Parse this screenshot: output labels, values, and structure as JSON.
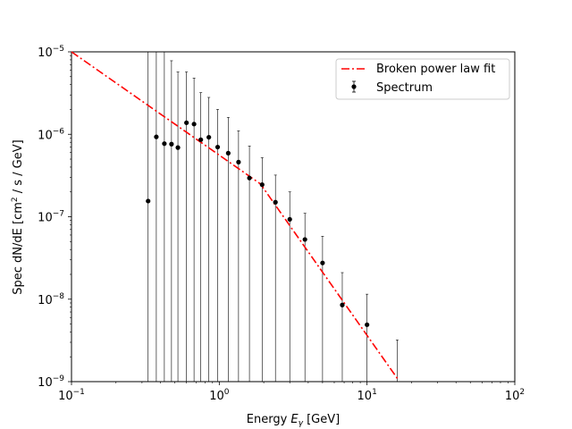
{
  "chart_data": {
    "type": "scatter",
    "xscale": "log",
    "yscale": "log",
    "xlim": [
      0.1,
      100
    ],
    "ylim": [
      1e-09,
      1e-05
    ],
    "xlabel": {
      "prefix": "Energy ",
      "sym": "E",
      "sub": "γ",
      "unit": " [GeV]"
    },
    "ylabel": {
      "prefix": "Spec dN/dE [cm",
      "sup": "2",
      "suffix": " / s / GeV]"
    },
    "x_ticks": [
      {
        "value": 0.1,
        "base": "10",
        "exp": "−1"
      },
      {
        "value": 1,
        "base": "10",
        "exp": "0"
      },
      {
        "value": 10,
        "base": "10",
        "exp": "1"
      },
      {
        "value": 100,
        "base": "10",
        "exp": "2"
      }
    ],
    "y_ticks": [
      {
        "value": 1e-09,
        "base": "10",
        "exp": "−9"
      },
      {
        "value": 1e-08,
        "base": "10",
        "exp": "−8"
      },
      {
        "value": 1e-07,
        "base": "10",
        "exp": "−7"
      },
      {
        "value": 1e-06,
        "base": "10",
        "exp": "−6"
      },
      {
        "value": 1e-05,
        "base": "10",
        "exp": "−5"
      }
    ],
    "legend": {
      "position": "upper right",
      "entries": [
        {
          "label": "Broken power law fit",
          "style": "dashdot-line",
          "color": "#ff0000"
        },
        {
          "label": "Spectrum",
          "style": "errorbar-point",
          "color": "#000000"
        }
      ]
    },
    "series": [
      {
        "name": "Spectrum",
        "kind": "points_with_errorbars",
        "color": "#000000",
        "x": [
          0.33,
          0.375,
          0.425,
          0.475,
          0.525,
          0.6,
          0.675,
          0.75,
          0.85,
          0.975,
          1.15,
          1.35,
          1.6,
          1.95,
          2.4,
          3.0,
          3.8,
          5.0,
          6.8,
          10.0
        ],
        "y": [
          1.55e-07,
          9.3e-07,
          7.7e-07,
          7.6e-07,
          6.9e-07,
          1.38e-06,
          1.33e-06,
          8.6e-07,
          9.2e-07,
          7e-07,
          5.9e-07,
          4.6e-07,
          2.95e-07,
          2.45e-07,
          1.5e-07,
          9.3e-08,
          5.3e-08,
          2.75e-08,
          8.5e-09,
          4.9e-09
        ],
        "y_upper": [
          0.0001,
          0.0001,
          0.0001,
          7.8e-06,
          5.7e-06,
          5.7e-06,
          4.8e-06,
          3.2e-06,
          2.8e-06,
          2e-06,
          1.6e-06,
          1.1e-06,
          7.2e-07,
          5.2e-07,
          3.2e-07,
          2e-07,
          1.1e-07,
          5.8e-08,
          2.1e-08,
          1.15e-08
        ],
        "y_lower": [
          1e-12,
          1e-12,
          1e-12,
          1e-12,
          1e-12,
          1e-12,
          1e-12,
          1e-12,
          1e-12,
          1e-12,
          1e-12,
          1e-12,
          1e-12,
          1e-12,
          1e-12,
          1e-12,
          1e-12,
          1e-12,
          1e-12,
          1e-12
        ],
        "upper_only": [
          {
            "x": 16.0,
            "y_upper": 3.2e-09
          }
        ]
      },
      {
        "name": "Broken power law fit",
        "kind": "line",
        "color": "#ff0000",
        "line_style": "dashdot",
        "x": [
          0.1,
          1.9,
          16.3
        ],
        "y": [
          1e-05,
          2.5e-07,
          1.05e-09
        ]
      }
    ]
  }
}
